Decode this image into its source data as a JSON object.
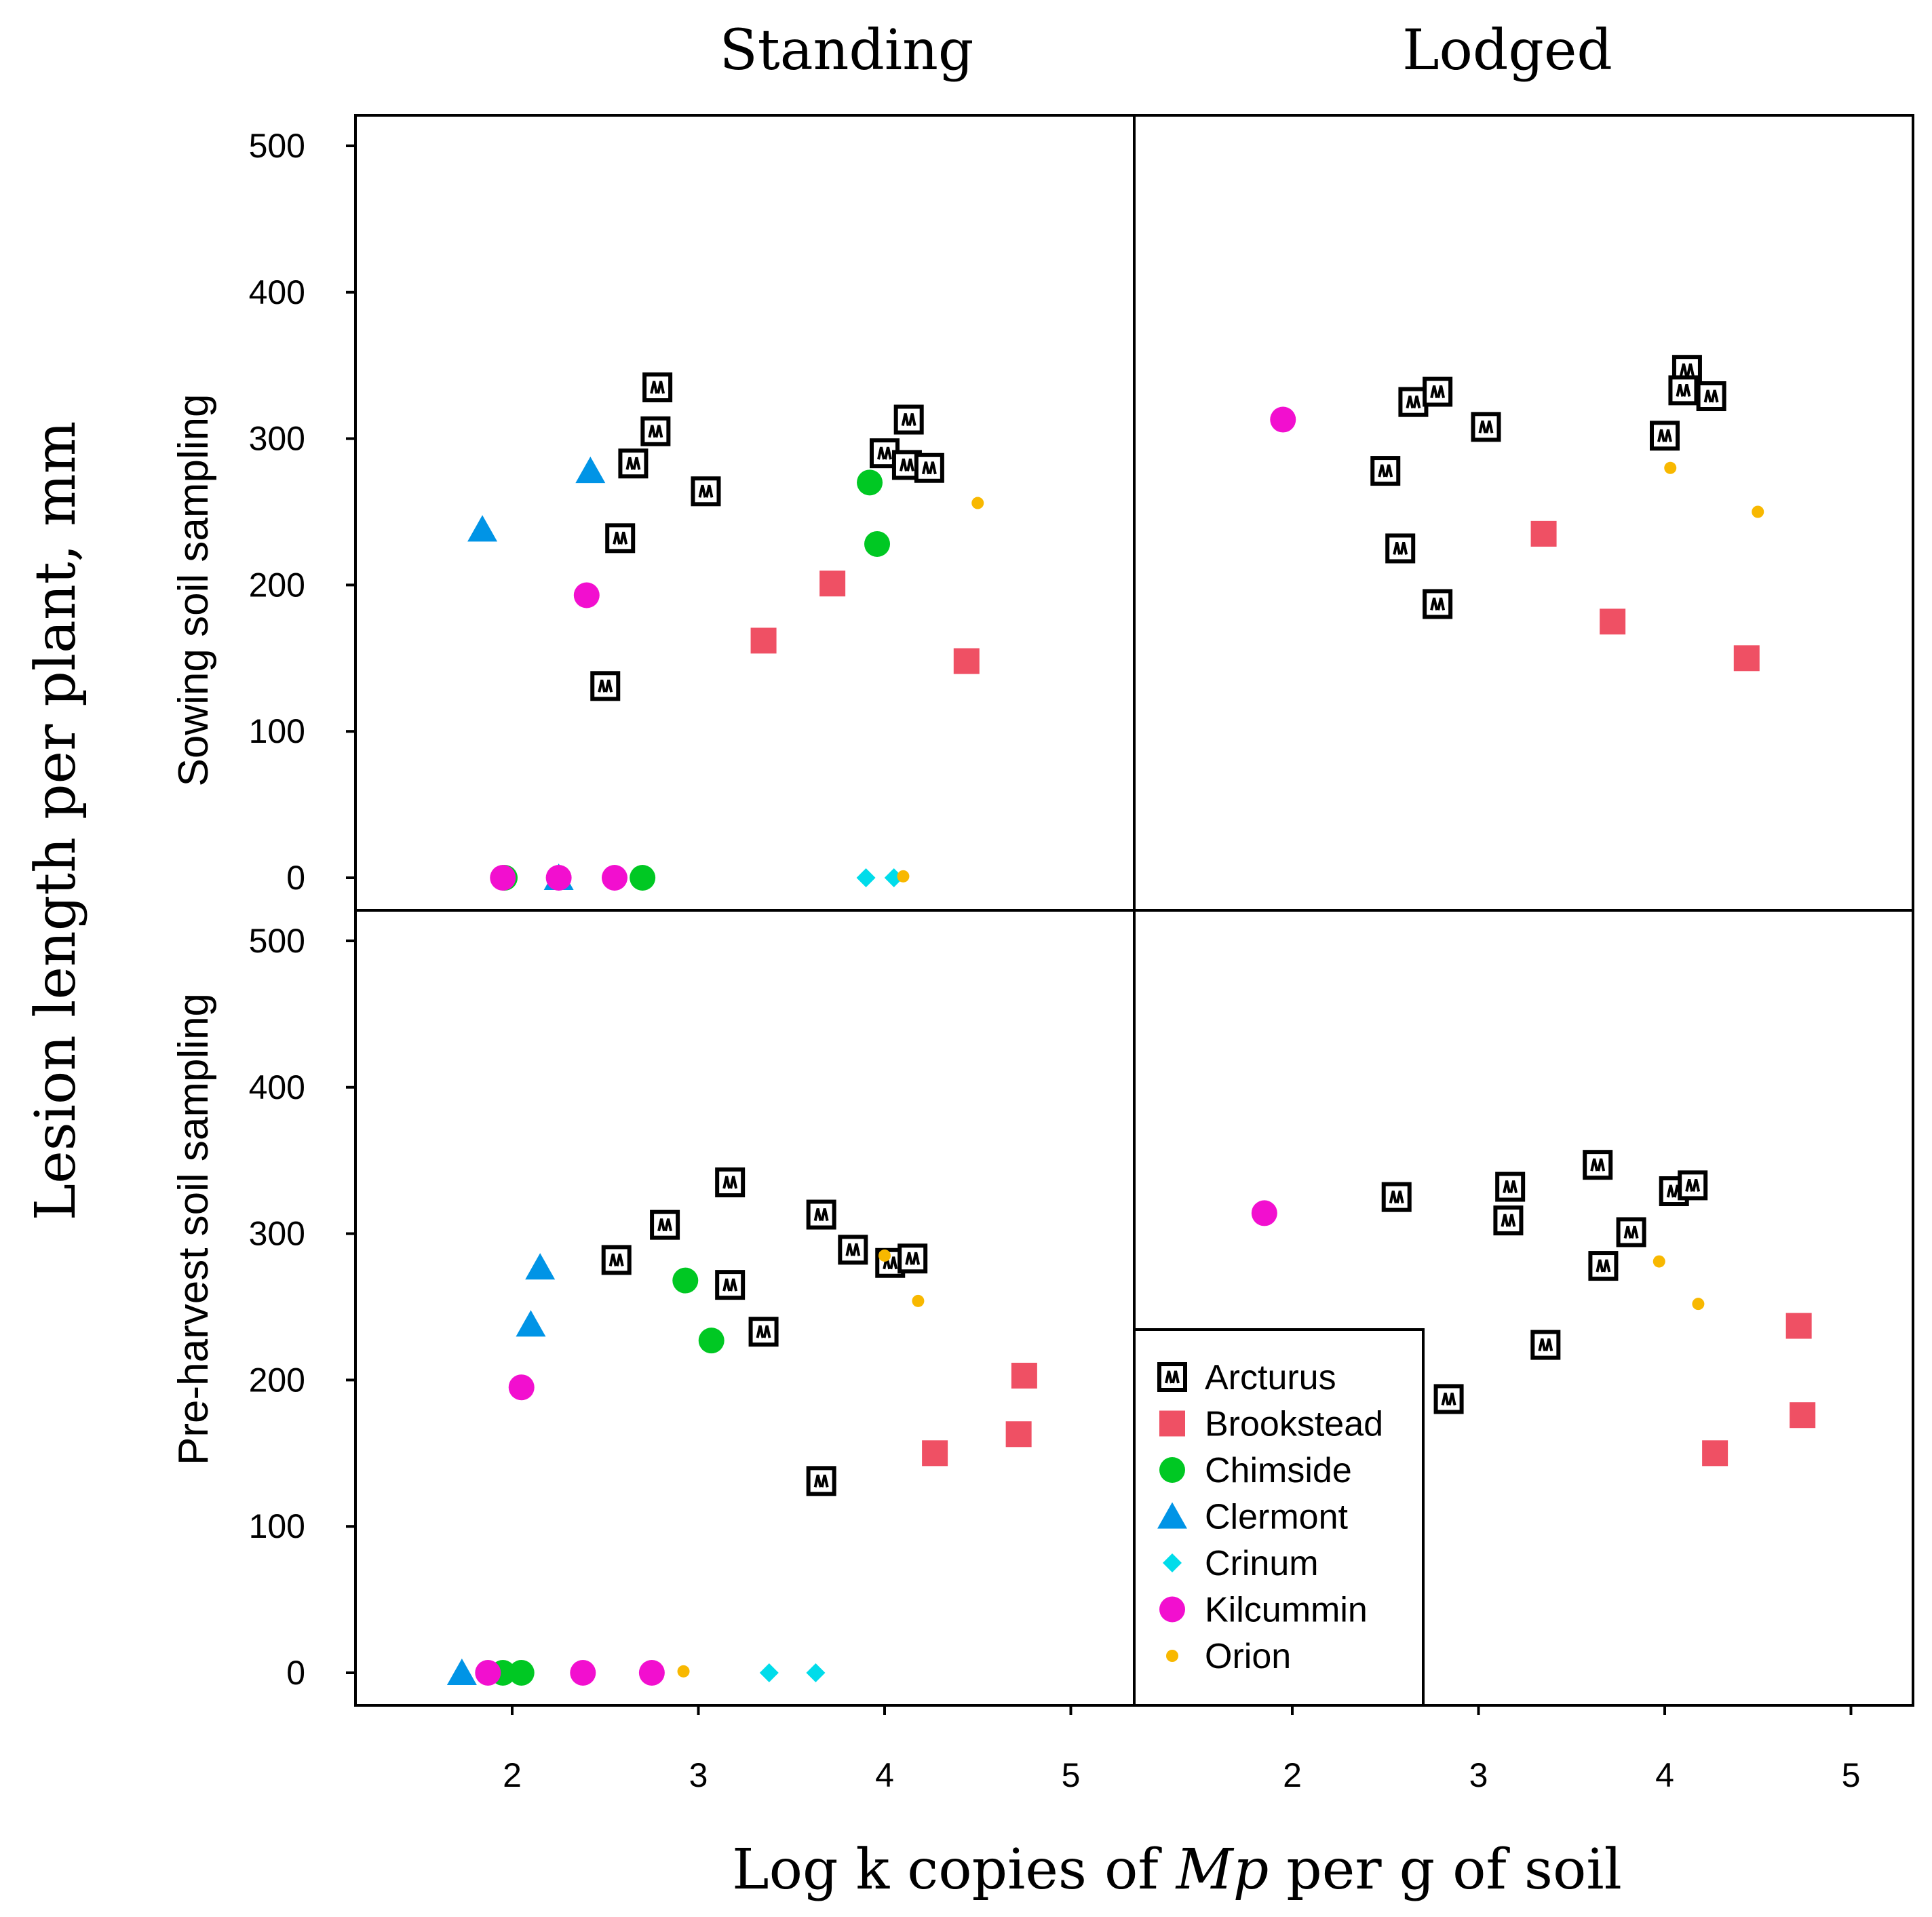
{
  "chart_data": {
    "type": "scatter",
    "layout": "2x2 lattice",
    "column_titles": [
      "Standing",
      "Lodged"
    ],
    "row_titles": [
      "Sowing soil sampling",
      "Pre-harvest soil sampling"
    ],
    "ylabel": "Lesion length per plant, mm",
    "xlabel_parts": [
      "Log k copies of ",
      "Mp",
      " per g of soil"
    ],
    "xlim": [
      1,
      5.4
    ],
    "ylim": [
      -15,
      520
    ],
    "x_ticks": [
      2,
      3,
      4,
      5
    ],
    "y_ticks": [
      0,
      100,
      200,
      300,
      400,
      500
    ],
    "legend": {
      "position": "bottom-left of lower-right panel",
      "entries": [
        "Arcturus",
        "Brookstead",
        "Chimside",
        "Clermont",
        "Crinum",
        "Kilcummin",
        "Orion"
      ]
    },
    "series": [
      {
        "name": "Arcturus",
        "marker": "boxed-glyph",
        "color": "#000000",
        "panels": {
          "standing_sowing": [
            [
              2.78,
              335
            ],
            [
              2.77,
              305
            ],
            [
              2.65,
              283
            ],
            [
              3.04,
              264
            ],
            [
              2.58,
              232
            ],
            [
              2.5,
              131
            ],
            [
              4.13,
              313
            ],
            [
              4.0,
              290
            ],
            [
              4.12,
              282
            ],
            [
              4.24,
              280
            ]
          ],
          "lodged_sowing": [
            [
              2.65,
              325
            ],
            [
              2.78,
              332
            ],
            [
              3.04,
              308
            ],
            [
              2.5,
              278
            ],
            [
              2.58,
              225
            ],
            [
              2.78,
              187
            ],
            [
              4.12,
              347
            ],
            [
              4.1,
              333
            ],
            [
              4.25,
              329
            ],
            [
              4.0,
              302
            ]
          ],
          "standing_preharvest": [
            [
              3.17,
              335
            ],
            [
              2.82,
              306
            ],
            [
              2.56,
              282
            ],
            [
              3.17,
              265
            ],
            [
              3.35,
              233
            ],
            [
              3.66,
              313
            ],
            [
              3.83,
              289
            ],
            [
              4.03,
              280
            ],
            [
              4.15,
              283
            ],
            [
              3.66,
              131
            ]
          ],
          "lodged_preharvest": [
            [
              2.56,
              325
            ],
            [
              3.17,
              332
            ],
            [
              3.16,
              309
            ],
            [
              2.84,
              187
            ],
            [
              3.36,
              224
            ],
            [
              3.64,
              347
            ],
            [
              3.67,
              278
            ],
            [
              3.82,
              301
            ],
            [
              4.05,
              329
            ],
            [
              4.15,
              333
            ]
          ]
        }
      },
      {
        "name": "Brookstead",
        "marker": "square",
        "color": "#ef5064",
        "panels": {
          "standing_sowing": [
            [
              3.35,
              162
            ],
            [
              3.72,
              201
            ],
            [
              4.44,
              148
            ]
          ],
          "lodged_sowing": [
            [
              3.35,
              235
            ],
            [
              3.72,
              175
            ],
            [
              4.44,
              150
            ]
          ],
          "standing_preharvest": [
            [
              4.27,
              150
            ],
            [
              4.72,
              163
            ],
            [
              4.75,
              203
            ]
          ],
          "lodged_preharvest": [
            [
              4.27,
              150
            ],
            [
              4.72,
              237
            ],
            [
              4.74,
              176
            ]
          ]
        }
      },
      {
        "name": "Chimside",
        "marker": "circle",
        "color": "#00c823",
        "panels": {
          "standing_sowing": [
            [
              3.92,
              270
            ],
            [
              3.96,
              228
            ],
            [
              1.96,
              0
            ],
            [
              2.7,
              0
            ]
          ],
          "lodged_sowing": [],
          "standing_preharvest": [
            [
              2.93,
              268
            ],
            [
              3.07,
              227
            ],
            [
              1.95,
              0
            ],
            [
              2.05,
              0
            ]
          ],
          "lodged_preharvest": []
        }
      },
      {
        "name": "Clermont",
        "marker": "triangle",
        "color": "#0094e6",
        "panels": {
          "standing_sowing": [
            [
              1.84,
              238
            ],
            [
              2.42,
              278
            ],
            [
              2.25,
              0
            ]
          ],
          "lodged_sowing": [],
          "standing_preharvest": [
            [
              2.15,
              277
            ],
            [
              2.1,
              238
            ],
            [
              1.73,
              0
            ]
          ],
          "lodged_preharvest": []
        }
      },
      {
        "name": "Crinum",
        "marker": "diamond",
        "color": "#00dcea",
        "panels": {
          "standing_sowing": [
            [
              3.9,
              0
            ],
            [
              4.05,
              0
            ]
          ],
          "lodged_sowing": [],
          "standing_preharvest": [
            [
              3.38,
              0
            ],
            [
              3.63,
              0
            ]
          ],
          "lodged_preharvest": []
        }
      },
      {
        "name": "Kilcummin",
        "marker": "circle",
        "color": "#f20fcf",
        "panels": {
          "standing_sowing": [
            [
              2.4,
              193
            ],
            [
              1.95,
              0
            ],
            [
              2.25,
              0
            ],
            [
              2.55,
              0
            ]
          ],
          "lodged_sowing": [
            [
              1.95,
              313
            ]
          ],
          "standing_preharvest": [
            [
              2.05,
              195
            ],
            [
              1.87,
              0
            ],
            [
              2.38,
              0
            ],
            [
              2.75,
              0
            ]
          ],
          "lodged_preharvest": [
            [
              1.85,
              314
            ]
          ]
        }
      },
      {
        "name": "Orion",
        "marker": "small-circle",
        "color": "#f8b800",
        "panels": {
          "standing_sowing": [
            [
              4.5,
              256
            ],
            [
              4.1,
              1
            ]
          ],
          "lodged_sowing": [
            [
              4.03,
              280
            ],
            [
              4.5,
              250
            ]
          ],
          "standing_preharvest": [
            [
              4.18,
              254
            ],
            [
              4.0,
              285
            ],
            [
              2.92,
              1
            ]
          ],
          "lodged_preharvest": [
            [
              3.97,
              281
            ],
            [
              4.18,
              252
            ]
          ]
        }
      }
    ]
  }
}
